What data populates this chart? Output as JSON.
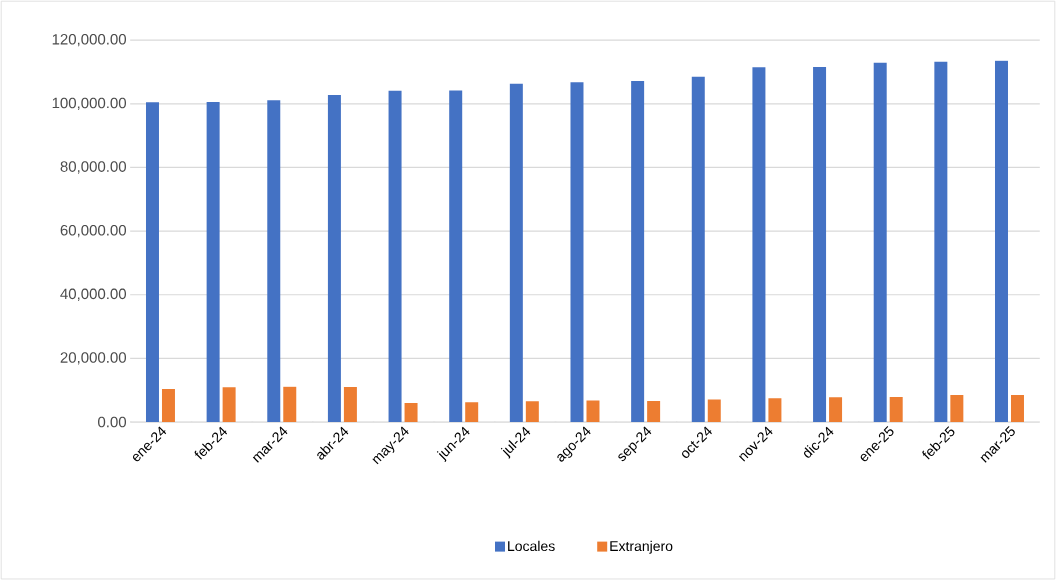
{
  "chart_data": {
    "type": "bar",
    "categories": [
      "ene-24",
      "feb-24",
      "mar-24",
      "abr-24",
      "may-24",
      "jun-24",
      "jul-24",
      "ago-24",
      "sep-24",
      "oct-24",
      "nov-24",
      "dic-24",
      "ene-25",
      "feb-25",
      "mar-25"
    ],
    "series": [
      {
        "name": "Locales",
        "color": "#4472c4",
        "values": [
          100500,
          100600,
          101100,
          102800,
          104100,
          104200,
          106300,
          106800,
          107200,
          108500,
          111500,
          111600,
          112900,
          113200,
          113500
        ]
      },
      {
        "name": "Extranjero",
        "color": "#ed7d31",
        "values": [
          10400,
          10900,
          11100,
          11000,
          6000,
          6200,
          6500,
          6800,
          6600,
          7100,
          7500,
          7800,
          7900,
          8500,
          8500
        ]
      }
    ],
    "ylim": [
      0,
      120000
    ],
    "yticks": [
      {
        "value": 0,
        "label": "0.00"
      },
      {
        "value": 20000,
        "label": "20,000.00"
      },
      {
        "value": 40000,
        "label": "40,000.00"
      },
      {
        "value": 60000,
        "label": "60,000.00"
      },
      {
        "value": 80000,
        "label": "80,000.00"
      },
      {
        "value": 100000,
        "label": "100,000.00"
      },
      {
        "value": 120000,
        "label": "120,000.00"
      }
    ],
    "grid": "y",
    "legend": "bottom"
  }
}
